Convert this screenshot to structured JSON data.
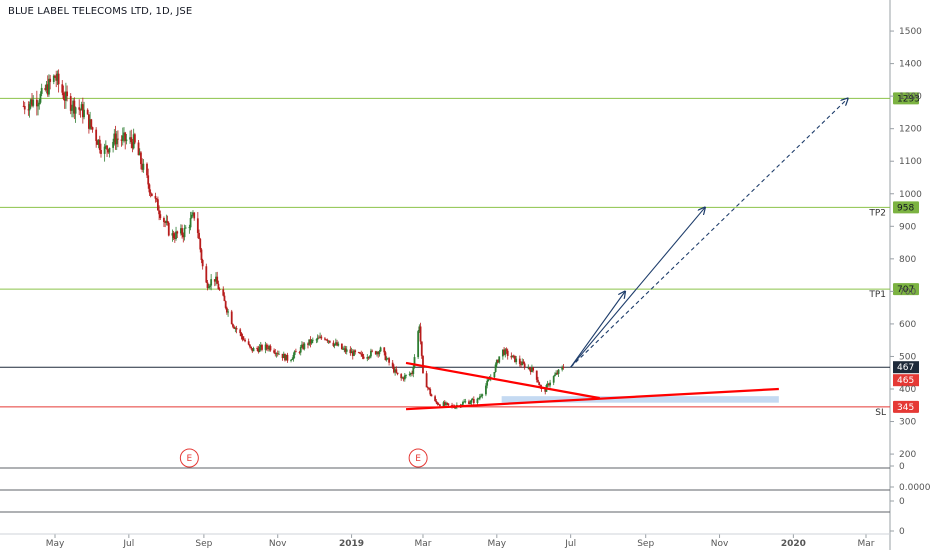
{
  "title": "BLUE LABEL TELECOMS LTD, 1D, JSE",
  "colors": {
    "up": "#2e7d32",
    "down": "#b71c1c",
    "level": "#8bc34a",
    "stop": "#e53935",
    "trend": "#ff0000",
    "arrow": "#1e3d6b",
    "current": "#1e2a3a",
    "zone": "#bbd3f0"
  },
  "chart_data": {
    "type": "candlestick",
    "title": "BLUE LABEL TELECOMS LTD, 1D, JSE",
    "y_axis": {
      "ticks": [
        1500,
        1400,
        1300,
        1200,
        1100,
        1000,
        900,
        800,
        700,
        600,
        500,
        400,
        300,
        200
      ],
      "ylim": [
        100,
        1540
      ]
    },
    "x_axis": {
      "ticks": [
        "May",
        "Jul",
        "Sep",
        "Nov",
        "2019",
        "Mar",
        "May",
        "Jul",
        "Sep",
        "Nov",
        "2020",
        "Mar"
      ]
    },
    "price_path": [
      [
        "2018-04-05",
        1270
      ],
      [
        "2018-04-20",
        1300
      ],
      [
        "2018-05-01",
        1360
      ],
      [
        "2018-05-10",
        1290
      ],
      [
        "2018-05-25",
        1250
      ],
      [
        "2018-06-10",
        1130
      ],
      [
        "2018-06-20",
        1170
      ],
      [
        "2018-07-05",
        1160
      ],
      [
        "2018-07-20",
        1000
      ],
      [
        "2018-08-05",
        870
      ],
      [
        "2018-08-15",
        880
      ],
      [
        "2018-08-25",
        940
      ],
      [
        "2018-09-02",
        720
      ],
      [
        "2018-09-10",
        740
      ],
      [
        "2018-09-25",
        600
      ],
      [
        "2018-10-10",
        520
      ],
      [
        "2018-10-25",
        530
      ],
      [
        "2018-11-10",
        490
      ],
      [
        "2018-11-25",
        540
      ],
      [
        "2018-12-10",
        560
      ],
      [
        "2018-12-25",
        520
      ],
      [
        "2019-01-10",
        500
      ],
      [
        "2019-01-25",
        520
      ],
      [
        "2019-02-10",
        430
      ],
      [
        "2019-02-20",
        450
      ],
      [
        "2019-02-26",
        600
      ],
      [
        "2019-03-01",
        440
      ],
      [
        "2019-03-10",
        360
      ],
      [
        "2019-03-25",
        345
      ],
      [
        "2019-04-05",
        360
      ],
      [
        "2019-04-15",
        365
      ],
      [
        "2019-04-28",
        450
      ],
      [
        "2019-05-05",
        520
      ],
      [
        "2019-05-20",
        480
      ],
      [
        "2019-06-01",
        455
      ],
      [
        "2019-06-08",
        385
      ],
      [
        "2019-06-15",
        430
      ],
      [
        "2019-06-25",
        467
      ]
    ],
    "levels": [
      {
        "label": "",
        "badge": "1293",
        "value": 1293
      },
      {
        "label": "TP2",
        "badge": "958",
        "value": 958
      },
      {
        "label": "TP1",
        "badge": "707",
        "value": 707
      },
      {
        "label": "SL",
        "badge": "345",
        "value": 345
      }
    ],
    "current_price": "467",
    "secondary_price": "465",
    "trendlines": [
      {
        "from": [
          "2019-02-15",
          480
        ],
        "to": [
          "2019-07-25",
          372
        ]
      },
      {
        "from": [
          "2019-02-15",
          338
        ],
        "to": [
          "2019-12-20",
          400
        ]
      }
    ],
    "support_zone": {
      "from": "2019-05-05",
      "to": "2019-12-20",
      "low": 358,
      "high": 378
    },
    "projections": [
      {
        "style": "solid",
        "from": [
          "2019-07-01",
          467
        ],
        "to": [
          "2019-08-15",
          700
        ]
      },
      {
        "style": "solid",
        "from": [
          "2019-07-01",
          467
        ],
        "to": [
          "2019-10-20",
          958
        ]
      },
      {
        "style": "dashed",
        "from": [
          "2019-07-01",
          467
        ],
        "to": [
          "2020-02-15",
          1293
        ]
      }
    ],
    "earnings_markers": [
      {
        "label": "E",
        "date": "2018-08-20"
      },
      {
        "label": "E",
        "date": "2019-02-25"
      }
    ],
    "lower_panel_ticks": [
      "0",
      "0.0000",
      "0",
      "0"
    ]
  }
}
